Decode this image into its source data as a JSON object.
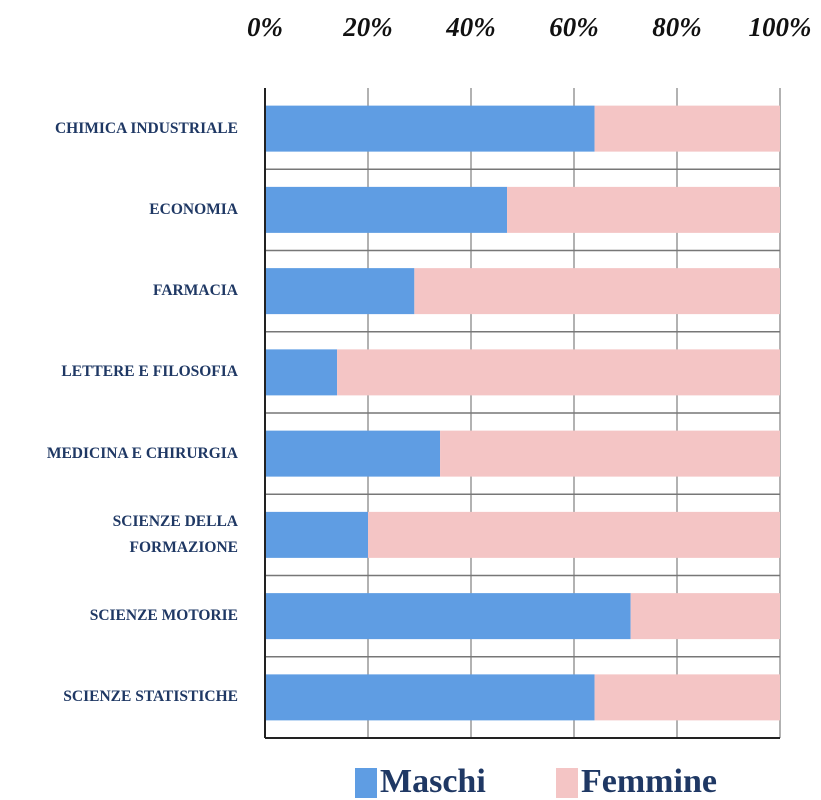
{
  "chart_data": {
    "type": "stacked_barh",
    "categories": [
      "CHIMICA INDUSTRIALE",
      "ECONOMIA",
      "FARMACIA",
      "LETTERE E FILOSOFIA",
      "MEDICINA E CHIRURGIA",
      "SCIENZE DELLA\nFORMAZIONE",
      "SCIENZE MOTORIE",
      "SCIENZE STATISTICHE"
    ],
    "series": [
      {
        "name": "Maschi",
        "color": "#5f9de3",
        "values": [
          64,
          47,
          29,
          14,
          34,
          20,
          71,
          64
        ]
      },
      {
        "name": "Femmine",
        "color": "#f4c5c5",
        "values": [
          36,
          53,
          71,
          86,
          66,
          80,
          29,
          36
        ]
      }
    ],
    "xlim": [
      0,
      100
    ],
    "xticks": [
      {
        "value": 0,
        "label": "0%"
      },
      {
        "value": 20,
        "label": "20%"
      },
      {
        "value": 40,
        "label": "40%"
      },
      {
        "value": 60,
        "label": "60%"
      },
      {
        "value": 80,
        "label": "80%"
      },
      {
        "value": 100,
        "label": "100%"
      }
    ],
    "grid": true,
    "legend": "bottom"
  }
}
